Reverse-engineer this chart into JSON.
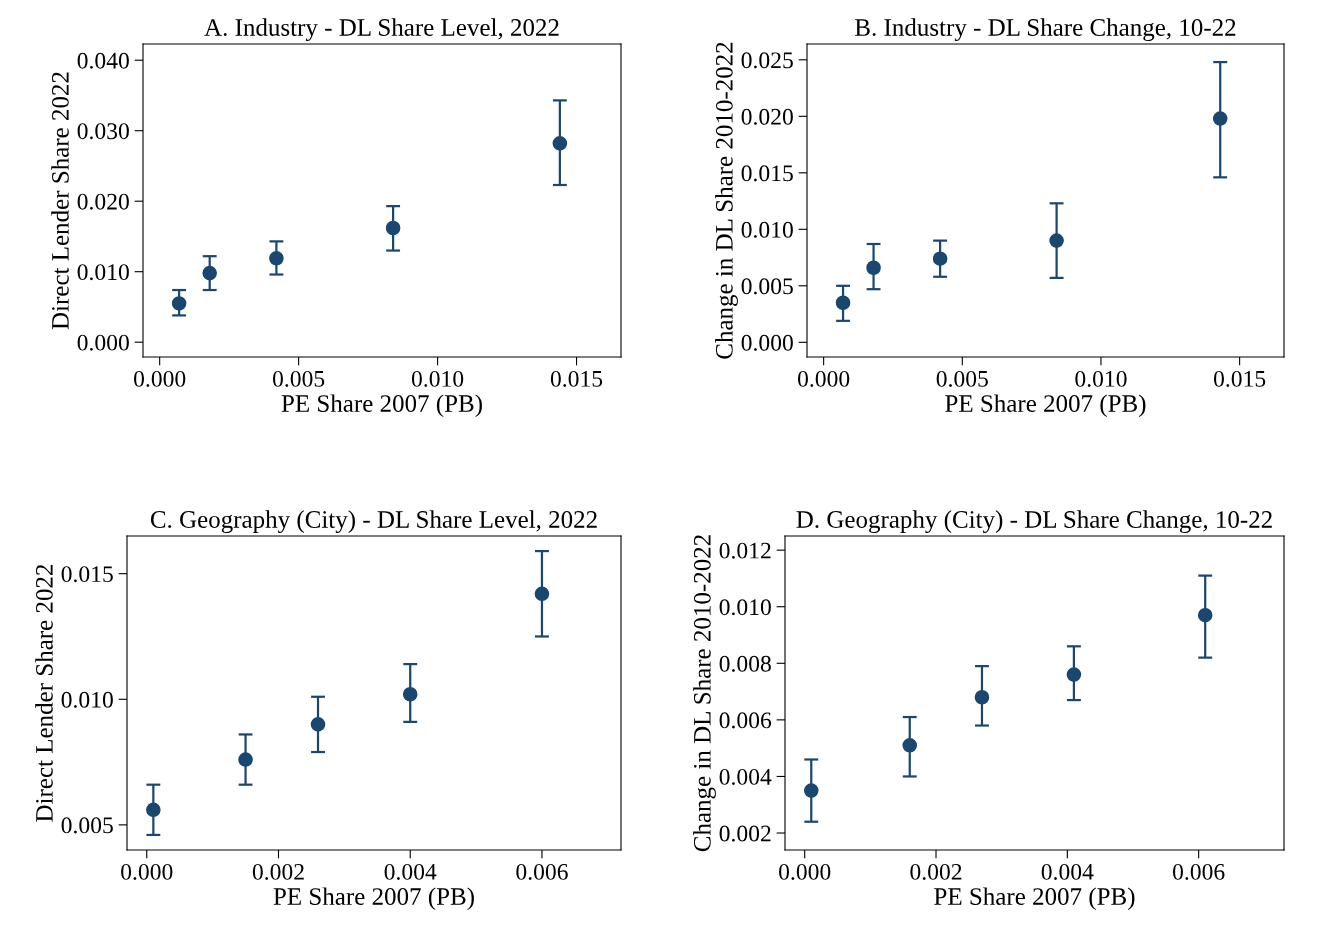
{
  "chart_data": [
    {
      "type": "scatter",
      "title": "A. Industry - DL Share Level, 2022",
      "xlabel": "PE Share 2007 (PB)",
      "ylabel": "Direct Lender Share 2022",
      "marker": "circle",
      "grid": false,
      "x": [
        0.0007,
        0.0018,
        0.0042,
        0.0084,
        0.0144
      ],
      "series": [
        {
          "color": "#1a476f",
          "values": [
            0.0055,
            0.0098,
            0.0119,
            0.0162,
            0.0282
          ],
          "errors": [
            [
              0.0038,
              0.0074
            ],
            [
              0.0074,
              0.0122
            ],
            [
              0.0096,
              0.0143
            ],
            [
              0.013,
              0.0193
            ],
            [
              0.0223,
              0.0343
            ]
          ]
        }
      ],
      "xlim": [
        -0.0006,
        0.0166
      ],
      "ylim": [
        -0.0021,
        0.0423
      ],
      "xticks": [
        {
          "value": 0,
          "label": "0.000"
        },
        {
          "value": 0.005,
          "label": "0.005"
        },
        {
          "value": 0.01,
          "label": "0.010"
        },
        {
          "value": 0.015,
          "label": "0.015"
        }
      ],
      "yticks": [
        {
          "value": 0,
          "label": "0.000"
        },
        {
          "value": 0.01,
          "label": "0.010"
        },
        {
          "value": 0.02,
          "label": "0.020"
        },
        {
          "value": 0.03,
          "label": "0.030"
        },
        {
          "value": 0.04,
          "label": "0.040"
        }
      ]
    },
    {
      "type": "scatter",
      "title": "B. Industry - DL Share Change, 10-22",
      "xlabel": "PE Share 2007 (PB)",
      "ylabel": "Change in DL Share 2010-2022",
      "marker": "circle",
      "grid": false,
      "x": [
        0.0007,
        0.0018,
        0.0042,
        0.0084,
        0.0143
      ],
      "series": [
        {
          "color": "#1a476f",
          "values": [
            0.0035,
            0.0066,
            0.0074,
            0.009,
            0.0198
          ],
          "errors": [
            [
              0.0019,
              0.005
            ],
            [
              0.0047,
              0.0087
            ],
            [
              0.0058,
              0.009
            ],
            [
              0.0057,
              0.0123
            ],
            [
              0.0146,
              0.0248
            ]
          ]
        }
      ],
      "xlim": [
        -0.0006,
        0.0166
      ],
      "ylim": [
        -0.0013,
        0.0264
      ],
      "xticks": [
        {
          "value": 0,
          "label": "0.000"
        },
        {
          "value": 0.005,
          "label": "0.005"
        },
        {
          "value": 0.01,
          "label": "0.010"
        },
        {
          "value": 0.015,
          "label": "0.015"
        }
      ],
      "yticks": [
        {
          "value": 0,
          "label": "0.000"
        },
        {
          "value": 0.005,
          "label": "0.005"
        },
        {
          "value": 0.01,
          "label": "0.010"
        },
        {
          "value": 0.015,
          "label": "0.015"
        },
        {
          "value": 0.02,
          "label": "0.020"
        },
        {
          "value": 0.025,
          "label": "0.025"
        }
      ]
    },
    {
      "type": "scatter",
      "title": "C. Geography (City) - DL Share Level, 2022",
      "xlabel": "PE Share 2007 (PB)",
      "ylabel": "Direct Lender Share 2022",
      "marker": "circle",
      "grid": false,
      "x": [
        0.0001,
        0.0015,
        0.0026,
        0.004,
        0.006
      ],
      "series": [
        {
          "color": "#1a476f",
          "values": [
            0.0056,
            0.0076,
            0.009,
            0.0102,
            0.0142
          ],
          "errors": [
            [
              0.0046,
              0.0066
            ],
            [
              0.0066,
              0.0086
            ],
            [
              0.0079,
              0.0101
            ],
            [
              0.0091,
              0.0114
            ],
            [
              0.0125,
              0.0159
            ]
          ]
        }
      ],
      "xlim": [
        -0.0003,
        0.0072
      ],
      "ylim": [
        0.004,
        0.0165
      ],
      "xticks": [
        {
          "value": 0,
          "label": "0.000"
        },
        {
          "value": 0.002,
          "label": "0.002"
        },
        {
          "value": 0.004,
          "label": "0.004"
        },
        {
          "value": 0.006,
          "label": "0.006"
        }
      ],
      "yticks": [
        {
          "value": 0.005,
          "label": "0.005"
        },
        {
          "value": 0.01,
          "label": "0.010"
        },
        {
          "value": 0.015,
          "label": "0.015"
        }
      ]
    },
    {
      "type": "scatter",
      "title": "D. Geography (City) - DL Share Change, 10-22",
      "xlabel": "PE Share 2007 (PB)",
      "ylabel": "Change in DL Share 2010-2022",
      "marker": "circle",
      "grid": false,
      "x": [
        0.0001,
        0.0016,
        0.0027,
        0.0041,
        0.0061
      ],
      "series": [
        {
          "color": "#1a476f",
          "values": [
            0.0035,
            0.0051,
            0.0068,
            0.0076,
            0.0097
          ],
          "errors": [
            [
              0.0024,
              0.0046
            ],
            [
              0.004,
              0.0061
            ],
            [
              0.0058,
              0.0079
            ],
            [
              0.0067,
              0.0086
            ],
            [
              0.0082,
              0.0111
            ]
          ]
        }
      ],
      "xlim": [
        -0.0003,
        0.0073
      ],
      "ylim": [
        0.0014,
        0.0125
      ],
      "xticks": [
        {
          "value": 0,
          "label": "0.000"
        },
        {
          "value": 0.002,
          "label": "0.002"
        },
        {
          "value": 0.004,
          "label": "0.004"
        },
        {
          "value": 0.006,
          "label": "0.006"
        }
      ],
      "yticks": [
        {
          "value": 0.002,
          "label": "0.002"
        },
        {
          "value": 0.004,
          "label": "0.004"
        },
        {
          "value": 0.006,
          "label": "0.006"
        },
        {
          "value": 0.008,
          "label": "0.008"
        },
        {
          "value": 0.01,
          "label": "0.010"
        },
        {
          "value": 0.012,
          "label": "0.012"
        }
      ]
    }
  ]
}
